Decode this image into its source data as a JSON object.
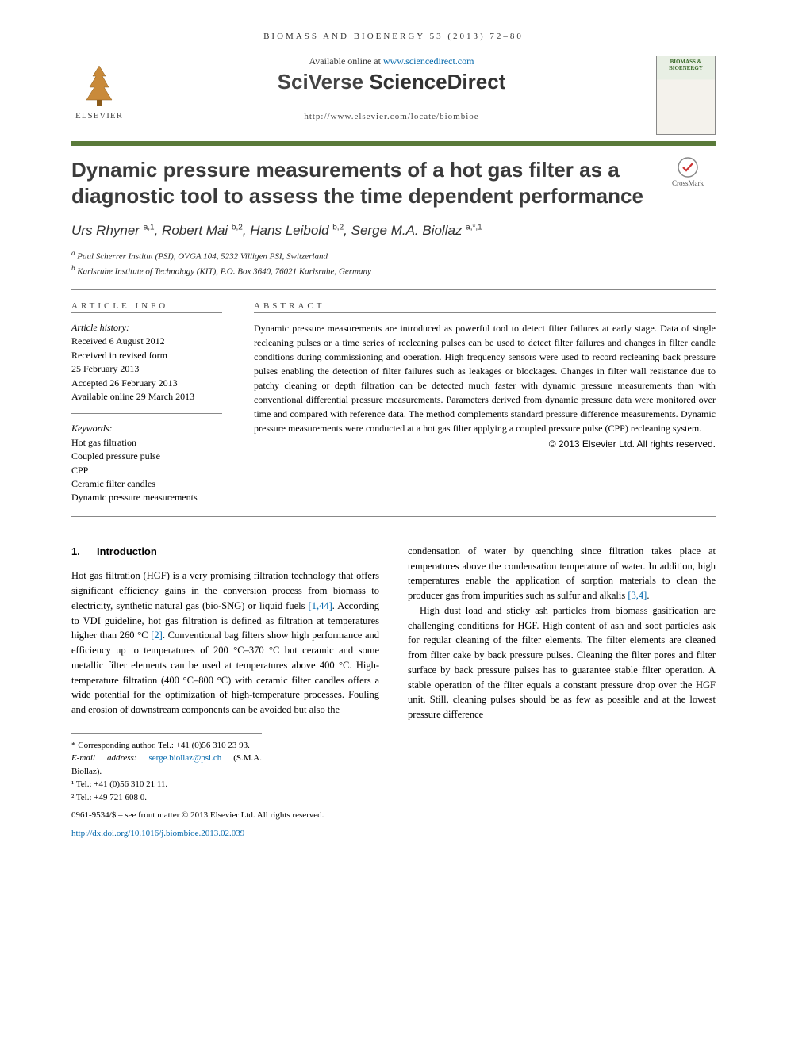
{
  "running_head": "BIOMASS AND BIOENERGY 53 (2013) 72–80",
  "header": {
    "available_prefix": "Available online at ",
    "available_url": "www.sciencedirect.com",
    "sd_brand_a": "SciVerse ",
    "sd_brand_b": "ScienceDirect",
    "locate_url": "http://www.elsevier.com/locate/biombioe",
    "elsevier_label": "ELSEVIER",
    "journal_thumb_title": "BIOMASS & BIOENERGY"
  },
  "crossmark_label": "CrossMark",
  "title": "Dynamic pressure measurements of a hot gas filter as a diagnostic tool to assess the time dependent performance",
  "authors_html": "Urs Rhyner|a,1|, Robert Mai|b,2|, Hans Leibold|b,2|, Serge M.A. Biollaz|a,*,1|",
  "authors": [
    {
      "name": "Urs Rhyner",
      "sup": "a,1"
    },
    {
      "name": "Robert Mai",
      "sup": "b,2"
    },
    {
      "name": "Hans Leibold",
      "sup": "b,2"
    },
    {
      "name": "Serge M.A. Biollaz",
      "sup": "a,*,1"
    }
  ],
  "affiliations": [
    {
      "sup": "a",
      "text": "Paul Scherrer Institut (PSI), OVGA 104, 5232 Villigen PSI, Switzerland"
    },
    {
      "sup": "b",
      "text": "Karlsruhe Institute of Technology (KIT), P.O. Box 3640, 76021 Karlsruhe, Germany"
    }
  ],
  "article_info": {
    "head": "ARTICLE INFO",
    "history_label": "Article history:",
    "history": [
      "Received 6 August 2012",
      "Received in revised form",
      "25 February 2013",
      "Accepted 26 February 2013",
      "Available online 29 March 2013"
    ],
    "keywords_label": "Keywords:",
    "keywords": [
      "Hot gas filtration",
      "Coupled pressure pulse",
      "CPP",
      "Ceramic filter candles",
      "Dynamic pressure measurements"
    ]
  },
  "abstract": {
    "head": "ABSTRACT",
    "text": "Dynamic pressure measurements are introduced as powerful tool to detect filter failures at early stage. Data of single recleaning pulses or a time series of recleaning pulses can be used to detect filter failures and changes in filter candle conditions during commissioning and operation. High frequency sensors were used to record recleaning back pressure pulses enabling the detection of filter failures such as leakages or blockages. Changes in filter wall resistance due to patchy cleaning or depth filtration can be detected much faster with dynamic pressure measurements than with conventional differential pressure measurements. Parameters derived from dynamic pressure data were monitored over time and compared with reference data. The method complements standard pressure difference measurements. Dynamic pressure measurements were conducted at a hot gas filter applying a coupled pressure pulse (CPP) recleaning system.",
    "copyright": "© 2013 Elsevier Ltd. All rights reserved."
  },
  "body": {
    "section_num": "1.",
    "section_title": "Introduction",
    "col1": "Hot gas filtration (HGF) is a very promising filtration technology that offers significant efficiency gains in the conversion process from biomass to electricity, synthetic natural gas (bio-SNG) or liquid fuels [1,44]. According to VDI guideline, hot gas filtration is defined as filtration at temperatures higher than 260 °C [2]. Conventional bag filters show high performance and efficiency up to temperatures of 200 °C–370 °C but ceramic and some metallic filter elements can be used at temperatures above 400 °C. High-temperature filtration (400 °C–800 °C) with ceramic filter candles offers a wide potential for the optimization of high-temperature processes. Fouling and erosion of downstream components can be avoided but also the",
    "col2": "condensation of water by quenching since filtration takes place at temperatures above the condensation temperature of water. In addition, high temperatures enable the application of sorption materials to clean the producer gas from impurities such as sulfur and alkalis [3,4].\nHigh dust load and sticky ash particles from biomass gasification are challenging conditions for HGF. High content of ash and soot particles ask for regular cleaning of the filter elements. The filter elements are cleaned from filter cake by back pressure pulses. Cleaning the filter pores and filter surface by back pressure pulses has to guarantee stable filter operation. A stable operation of the filter equals a constant pressure drop over the HGF unit. Still, cleaning pulses should be as few as possible and at the lowest pressure difference",
    "refs_col1": [
      "[1,44]",
      "[2]"
    ],
    "refs_col2": [
      "[3,4]"
    ]
  },
  "footnotes": {
    "corresponding": "* Corresponding author. Tel.: +41 (0)56 310 23 93.",
    "email_label": "E-mail address: ",
    "email": "serge.biollaz@psi.ch",
    "email_paren": " (S.M.A. Biollaz).",
    "tel1": "¹ Tel.: +41 (0)56 310 21 11.",
    "tel2": "² Tel.: +49 721 608 0."
  },
  "footer": {
    "front_matter": "0961-9534/$ – see front matter © 2013 Elsevier Ltd. All rights reserved.",
    "doi": "http://dx.doi.org/10.1016/j.biombioe.2013.02.039"
  },
  "colors": {
    "accent_bar": "#5a7a3a",
    "link": "#0066aa",
    "title_text": "#3b3b3b"
  }
}
